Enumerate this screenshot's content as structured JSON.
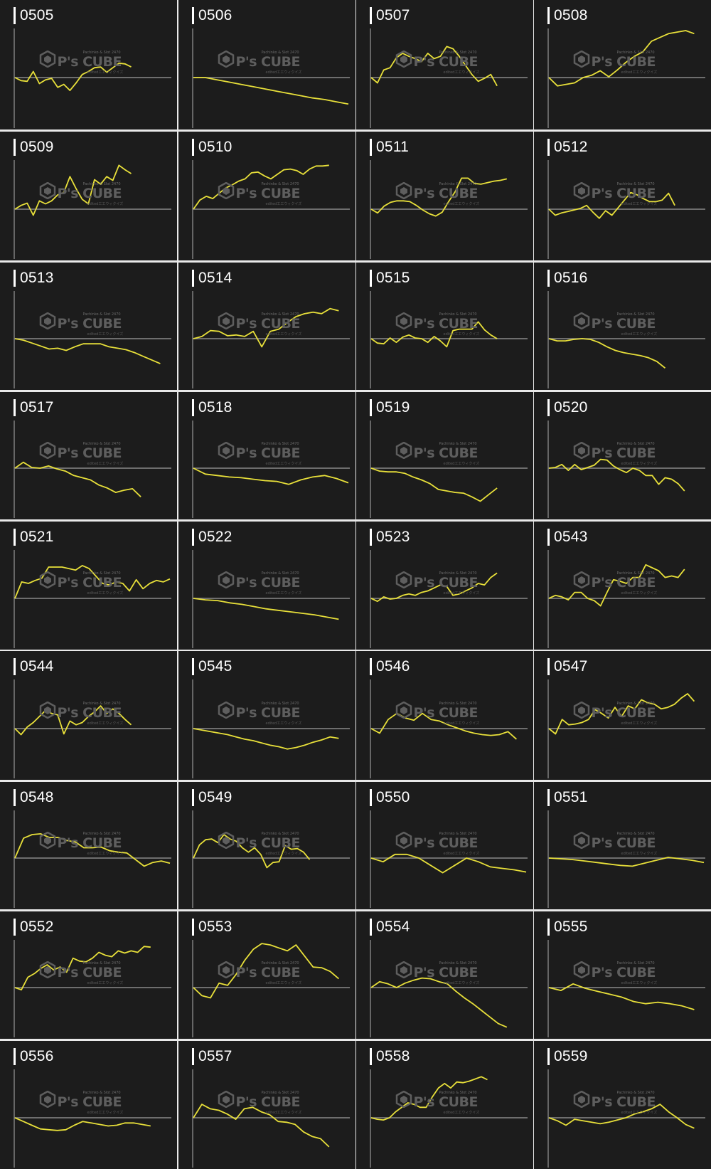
{
  "colors": {
    "panel_bg": "#1c1c1c",
    "line": "#e8e03a",
    "baseline": "#8a8a8a",
    "axis": "#b0b0b0",
    "label": "#ffffff",
    "watermark": "#5e5e5e"
  },
  "watermark": {
    "small_text": "Pachinko & Slot 2470",
    "main_text": "P's CUBE",
    "sub_text": "edited工工ウィクイズ"
  },
  "chart_data": [
    {
      "type": "line",
      "title": "0505",
      "values": [
        0,
        -4,
        -5,
        8,
        -8,
        -3,
        -1,
        -13,
        -9,
        -17,
        -7,
        4,
        8,
        13,
        14,
        7,
        13,
        19,
        18,
        14
      ]
    },
    {
      "type": "line",
      "title": "0506",
      "values": [
        0,
        0,
        -3,
        -6,
        -9,
        -12,
        -15,
        -18,
        -21,
        -24,
        -27,
        -29,
        -32,
        -35
      ]
    },
    {
      "type": "line",
      "title": "0507",
      "values": [
        0,
        -7,
        10,
        13,
        26,
        32,
        28,
        25,
        21,
        32,
        25,
        28,
        41,
        38,
        28,
        16,
        4,
        -5,
        -1,
        4,
        -11
      ]
    },
    {
      "type": "line",
      "title": "0508",
      "values": [
        0,
        -11,
        -9,
        -7,
        0,
        3,
        9,
        1,
        10,
        20,
        28,
        34,
        48,
        53,
        58,
        60,
        62,
        58
      ]
    },
    {
      "type": "line",
      "title": "0509",
      "values": [
        0,
        5,
        8,
        -8,
        11,
        7,
        11,
        19,
        22,
        43,
        27,
        13,
        7,
        39,
        33,
        43,
        38,
        58,
        52,
        47
      ]
    },
    {
      "type": "line",
      "title": "0510",
      "values": [
        0,
        12,
        17,
        14,
        21,
        28,
        32,
        37,
        40,
        48,
        49,
        44,
        40,
        46,
        52,
        53,
        51,
        46,
        53,
        57,
        57,
        58
      ]
    },
    {
      "type": "line",
      "title": "0511",
      "values": [
        0,
        -5,
        4,
        9,
        11,
        11,
        10,
        5,
        -1,
        -6,
        -9,
        -4,
        10,
        23,
        41,
        41,
        34,
        33,
        35,
        37,
        38,
        40
      ]
    },
    {
      "type": "line",
      "title": "0512",
      "values": [
        0,
        -8,
        -5,
        -3,
        -1,
        1,
        5,
        -4,
        -12,
        -2,
        -8,
        2,
        12,
        22,
        19,
        14,
        10,
        10,
        12,
        21,
        5
      ]
    },
    {
      "type": "line",
      "title": "0513",
      "values": [
        0,
        -2,
        -6,
        -10,
        -14,
        -13,
        -16,
        -11,
        -7,
        -7,
        -7,
        -11,
        -13,
        -15,
        -19,
        -24,
        -29,
        -34
      ]
    },
    {
      "type": "line",
      "title": "0514",
      "values": [
        0,
        3,
        11,
        10,
        4,
        5,
        3,
        10,
        -11,
        10,
        13,
        22,
        30,
        34,
        36,
        34,
        41,
        38
      ]
    },
    {
      "type": "line",
      "title": "0515",
      "values": [
        0,
        -6,
        -7,
        1,
        -5,
        2,
        5,
        1,
        0,
        -5,
        3,
        -3,
        -11,
        11,
        13,
        13,
        13,
        23,
        12,
        5,
        0
      ]
    },
    {
      "type": "line",
      "title": "0516",
      "values": [
        0,
        -3,
        -3,
        -1,
        0,
        -1,
        -5,
        -11,
        -16,
        -19,
        -21,
        -23,
        -26,
        -31,
        -40
      ]
    },
    {
      "type": "line",
      "title": "0517",
      "values": [
        0,
        8,
        1,
        0,
        3,
        -1,
        -4,
        -10,
        -13,
        -16,
        -23,
        -27,
        -33,
        -30,
        -28,
        -39
      ]
    },
    {
      "type": "line",
      "title": "0518",
      "values": [
        0,
        -8,
        -10,
        -12,
        -13,
        -15,
        -17,
        -18,
        -22,
        -16,
        -12,
        -10,
        -14,
        -20
      ]
    },
    {
      "type": "line",
      "title": "0519",
      "values": [
        0,
        -4,
        -5,
        -5,
        -7,
        -12,
        -16,
        -21,
        -29,
        -31,
        -33,
        -34,
        -39,
        -45,
        -36,
        -27
      ]
    },
    {
      "type": "line",
      "title": "0520",
      "values": [
        0,
        1,
        5,
        -3,
        5,
        -2,
        1,
        4,
        12,
        11,
        3,
        -2,
        -6,
        0,
        -3,
        -10,
        -10,
        -22,
        -13,
        -15,
        -21,
        -31
      ]
    },
    {
      "type": "line",
      "title": "0521",
      "values": [
        0,
        22,
        20,
        24,
        27,
        42,
        42,
        42,
        40,
        38,
        44,
        40,
        30,
        20,
        18,
        22,
        20,
        10,
        25,
        13,
        20,
        24,
        22,
        26
      ]
    },
    {
      "type": "line",
      "title": "0522",
      "values": [
        0,
        -2,
        -3,
        -6,
        -8,
        -11,
        -14,
        -16,
        -18,
        -20,
        -22,
        -25,
        -28
      ]
    },
    {
      "type": "line",
      "title": "0523",
      "values": [
        0,
        -4,
        2,
        -1,
        0,
        4,
        6,
        4,
        8,
        10,
        14,
        18,
        16,
        4,
        6,
        10,
        14,
        20,
        18,
        28,
        34
      ]
    },
    {
      "type": "line",
      "title": "0543",
      "values": [
        0,
        4,
        2,
        -2,
        8,
        8,
        0,
        -3,
        -10,
        8,
        25,
        23,
        20,
        28,
        28,
        45,
        41,
        37,
        28,
        30,
        28,
        39
      ]
    },
    {
      "type": "line",
      "title": "0544",
      "values": [
        0,
        -8,
        2,
        8,
        16,
        24,
        20,
        18,
        -7,
        10,
        5,
        8,
        16,
        22,
        30,
        20,
        26,
        20,
        12,
        5
      ]
    },
    {
      "type": "line",
      "title": "0545",
      "values": [
        0,
        -2,
        -4,
        -6,
        -8,
        -11,
        -14,
        -16,
        -19,
        -22,
        -24,
        -27,
        -25,
        -22,
        -18,
        -15,
        -11,
        -13
      ]
    },
    {
      "type": "line",
      "title": "0546",
      "values": [
        0,
        -6,
        12,
        20,
        14,
        11,
        20,
        12,
        10,
        5,
        1,
        -3,
        -6,
        -8,
        -9,
        -8,
        -4,
        -14
      ]
    },
    {
      "type": "line",
      "title": "0547",
      "values": [
        0,
        -7,
        12,
        5,
        6,
        8,
        12,
        25,
        20,
        14,
        28,
        16,
        30,
        26,
        38,
        34,
        32,
        26,
        28,
        32,
        40,
        46,
        36
      ]
    },
    {
      "type": "line",
      "title": "0548",
      "values": [
        0,
        27,
        32,
        33,
        28,
        28,
        24,
        22,
        14,
        14,
        15,
        10,
        8,
        7,
        -2,
        -11,
        -6,
        -4,
        -7
      ]
    },
    {
      "type": "line",
      "title": "0549",
      "values": [
        0,
        18,
        25,
        26,
        21,
        32,
        26,
        23,
        14,
        8,
        14,
        5,
        -13,
        -6,
        -5,
        17,
        12,
        13,
        8,
        -2
      ]
    },
    {
      "type": "line",
      "title": "0550",
      "values": [
        0,
        -5,
        5,
        5,
        0,
        -10,
        -20,
        -10,
        0,
        -5,
        -12,
        -14,
        -16,
        -19
      ]
    },
    {
      "type": "line",
      "title": "0551",
      "values": [
        0,
        -1,
        -2,
        -4,
        -6,
        -8,
        -10,
        -11,
        -7,
        -3,
        1,
        -1,
        -3,
        -6
      ]
    },
    {
      "type": "line",
      "title": "0552",
      "values": [
        0,
        -3,
        14,
        19,
        26,
        31,
        24,
        28,
        21,
        40,
        36,
        35,
        40,
        48,
        44,
        42,
        50,
        47,
        50,
        48,
        56,
        55
      ]
    },
    {
      "type": "line",
      "title": "0553",
      "values": [
        0,
        -11,
        -14,
        6,
        3,
        18,
        37,
        52,
        60,
        58,
        54,
        50,
        58,
        43,
        28,
        27,
        22,
        12
      ]
    },
    {
      "type": "line",
      "title": "0554",
      "values": [
        0,
        8,
        5,
        0,
        6,
        10,
        13,
        12,
        8,
        5,
        -5,
        -14,
        -22,
        -31,
        -40,
        -49,
        -54
      ]
    },
    {
      "type": "line",
      "title": "0555",
      "values": [
        0,
        -4,
        5,
        -1,
        -5,
        -9,
        -13,
        -19,
        -22,
        -20,
        -22,
        -25,
        -30
      ]
    },
    {
      "type": "line",
      "title": "0556",
      "values": [
        0,
        -5,
        -10,
        -15,
        -16,
        -17,
        -16,
        -10,
        -5,
        -7,
        -9,
        -11,
        -10,
        -7,
        -7,
        -9,
        -11
      ]
    },
    {
      "type": "line",
      "title": "0557",
      "values": [
        0,
        18,
        12,
        10,
        5,
        -2,
        12,
        14,
        8,
        4,
        -5,
        -6,
        -9,
        -19,
        -25,
        -28,
        -39
      ]
    },
    {
      "type": "line",
      "title": "0558",
      "values": [
        0,
        -2,
        -3,
        0,
        8,
        14,
        20,
        18,
        14,
        14,
        28,
        40,
        46,
        40,
        48,
        47,
        49,
        52,
        55,
        51
      ]
    },
    {
      "type": "line",
      "title": "0559",
      "values": [
        0,
        -4,
        -10,
        -2,
        -4,
        -6,
        -8,
        -6,
        -3,
        0,
        5,
        8,
        12,
        18,
        8,
        0,
        -9,
        -14
      ]
    }
  ]
}
